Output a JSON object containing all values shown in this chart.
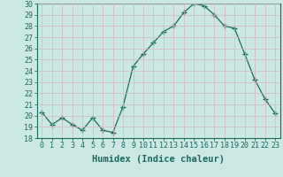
{
  "xlabel": "Humidex (Indice chaleur)",
  "x": [
    0,
    1,
    2,
    3,
    4,
    5,
    6,
    7,
    8,
    9,
    10,
    11,
    12,
    13,
    14,
    15,
    16,
    17,
    18,
    19,
    20,
    21,
    22,
    23
  ],
  "y": [
    20.3,
    19.2,
    19.8,
    19.2,
    18.7,
    19.8,
    18.7,
    18.5,
    20.8,
    24.4,
    25.5,
    26.5,
    27.5,
    28.0,
    29.2,
    30.0,
    29.8,
    29.0,
    28.0,
    27.8,
    25.5,
    23.2,
    21.5,
    20.2
  ],
  "ylim_min": 18,
  "ylim_max": 30,
  "yticks": [
    18,
    19,
    20,
    21,
    22,
    23,
    24,
    25,
    26,
    27,
    28,
    29,
    30
  ],
  "xtick_labels": [
    "0",
    "1",
    "2",
    "3",
    "4",
    "5",
    "6",
    "7",
    "8",
    "9",
    "10",
    "11",
    "12",
    "13",
    "14",
    "15",
    "16",
    "17",
    "18",
    "19",
    "20",
    "21",
    "22",
    "23"
  ],
  "line_color": "#1a6b5a",
  "marker": "+",
  "bg_color": "#cce8e4",
  "grid_color": "#b8d8d2",
  "axis_label_fontsize": 7.5,
  "tick_fontsize": 6.0
}
